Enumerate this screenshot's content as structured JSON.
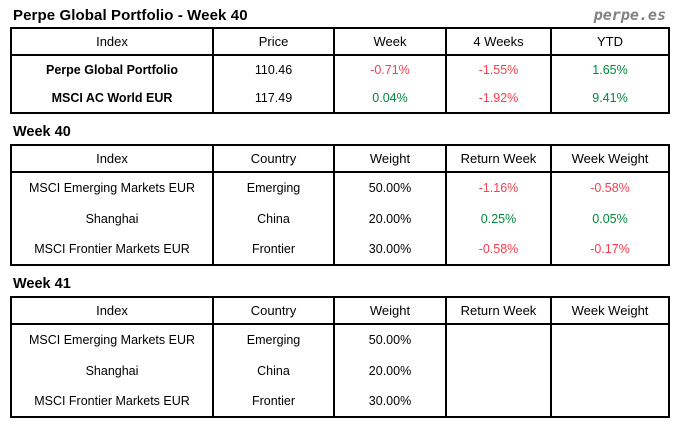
{
  "header": {
    "title": "Perpe Global Portfolio - Week 40",
    "logo": "perpe.es"
  },
  "colors": {
    "negative": "#fa3c4c",
    "positive": "#00883c",
    "logo_gray": "#828282"
  },
  "summary_table": {
    "columns": [
      "Index",
      "Price",
      "Week",
      "4 Weeks",
      "YTD"
    ],
    "rows": [
      {
        "index": "Perpe Global Portfolio",
        "price": "110.46",
        "week": "-0.71%",
        "four_weeks": "-1.55%",
        "ytd": "1.65%"
      },
      {
        "index": "MSCI AC World EUR",
        "price": "117.49",
        "week": "0.04%",
        "four_weeks": "-1.92%",
        "ytd": "9.41%"
      }
    ]
  },
  "week40": {
    "heading": "Week 40",
    "columns": [
      "Index",
      "Country",
      "Weight",
      "Return Week",
      "Week Weight"
    ],
    "rows": [
      {
        "index": "MSCI Emerging Markets EUR",
        "country": "Emerging",
        "weight": "50.00%",
        "return_week": "-1.16%",
        "week_weight": "-0.58%"
      },
      {
        "index": "Shanghai",
        "country": "China",
        "weight": "20.00%",
        "return_week": "0.25%",
        "week_weight": "0.05%"
      },
      {
        "index": "MSCI Frontier Markets EUR",
        "country": "Frontier",
        "weight": "30.00%",
        "return_week": "-0.58%",
        "week_weight": "-0.17%"
      }
    ]
  },
  "week41": {
    "heading": "Week 41",
    "columns": [
      "Index",
      "Country",
      "Weight",
      "Return Week",
      "Week Weight"
    ],
    "rows": [
      {
        "index": "MSCI Emerging Markets EUR",
        "country": "Emerging",
        "weight": "50.00%",
        "return_week": "",
        "week_weight": ""
      },
      {
        "index": "Shanghai",
        "country": "China",
        "weight": "20.00%",
        "return_week": "",
        "week_weight": ""
      },
      {
        "index": "MSCI Frontier Markets EUR",
        "country": "Frontier",
        "weight": "30.00%",
        "return_week": "",
        "week_weight": ""
      }
    ]
  }
}
